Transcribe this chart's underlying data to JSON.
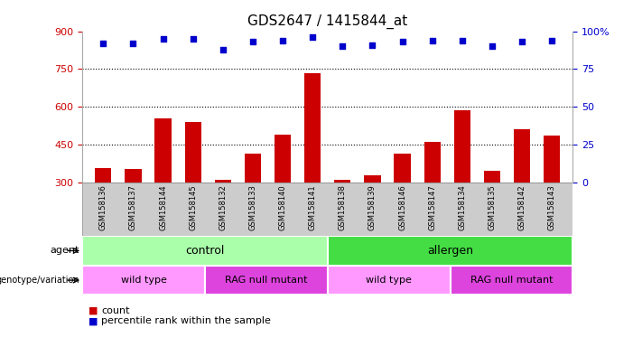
{
  "title": "GDS2647 / 1415844_at",
  "samples": [
    "GSM158136",
    "GSM158137",
    "GSM158144",
    "GSM158145",
    "GSM158132",
    "GSM158133",
    "GSM158140",
    "GSM158141",
    "GSM158138",
    "GSM158139",
    "GSM158146",
    "GSM158147",
    "GSM158134",
    "GSM158135",
    "GSM158142",
    "GSM158143"
  ],
  "counts": [
    355,
    352,
    553,
    538,
    308,
    415,
    490,
    733,
    308,
    327,
    413,
    460,
    585,
    345,
    510,
    487
  ],
  "percentile_ranks": [
    92,
    92,
    95,
    95,
    88,
    93,
    94,
    96,
    90,
    91,
    93,
    94,
    94,
    90,
    93,
    94
  ],
  "ylim_left": [
    300,
    900
  ],
  "yticks_left": [
    300,
    450,
    600,
    750,
    900
  ],
  "ylim_right": [
    0,
    100
  ],
  "yticks_right": [
    0,
    25,
    50,
    75,
    100
  ],
  "bar_color": "#cc0000",
  "dot_color": "#0000cc",
  "bar_width": 0.55,
  "agent_labels": [
    {
      "text": "control",
      "start": 0,
      "end": 8,
      "color": "#aaffaa"
    },
    {
      "text": "allergen",
      "start": 8,
      "end": 16,
      "color": "#44dd44"
    }
  ],
  "genotype_labels": [
    {
      "text": "wild type",
      "start": 0,
      "end": 4,
      "color": "#ff99ff"
    },
    {
      "text": "RAG null mutant",
      "start": 4,
      "end": 8,
      "color": "#dd44dd"
    },
    {
      "text": "wild type",
      "start": 8,
      "end": 12,
      "color": "#ff99ff"
    },
    {
      "text": "RAG null mutant",
      "start": 12,
      "end": 16,
      "color": "#dd44dd"
    }
  ],
  "legend_count_color": "#cc0000",
  "legend_pct_color": "#0000cc",
  "background_color": "#ffffff",
  "tick_label_color_left": "#cc0000",
  "tick_label_color_right": "#0000cc",
  "sample_bg_color": "#cccccc",
  "n_samples": 16
}
